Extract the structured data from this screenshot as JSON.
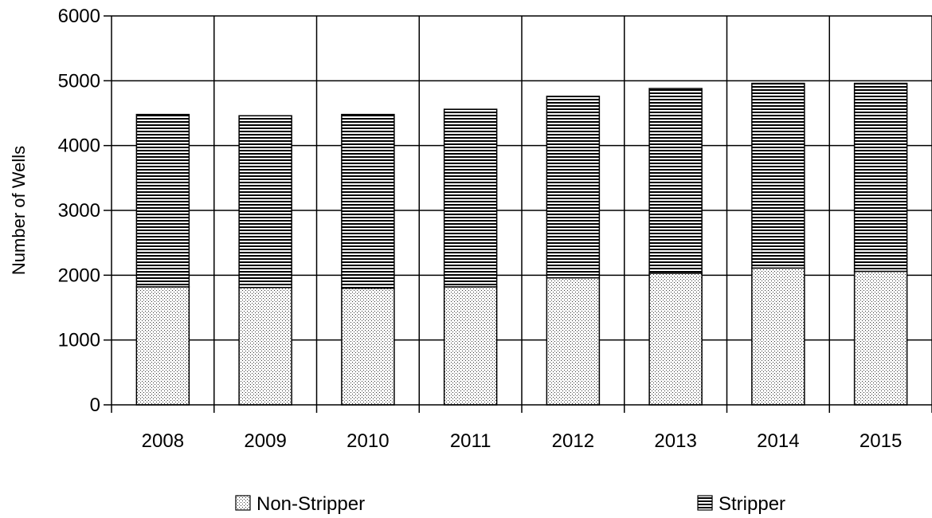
{
  "chart_data": {
    "type": "bar",
    "stacked": true,
    "categories": [
      "2008",
      "2009",
      "2010",
      "2011",
      "2012",
      "2013",
      "2014",
      "2015"
    ],
    "series": [
      {
        "name": "Non-Stripper",
        "pattern": "dots",
        "values": [
          1820,
          1810,
          1800,
          1820,
          1960,
          2030,
          2110,
          2060
        ]
      },
      {
        "name": "Stripper",
        "pattern": "horizontal-lines",
        "values": [
          2660,
          2650,
          2680,
          2740,
          2800,
          2850,
          2850,
          2900
        ]
      }
    ],
    "ylabel": "Number of Wells",
    "ylim": [
      0,
      6000
    ],
    "yticks": [
      0,
      1000,
      2000,
      3000,
      4000,
      5000,
      6000
    ],
    "grid": true,
    "legend_position": "bottom"
  }
}
